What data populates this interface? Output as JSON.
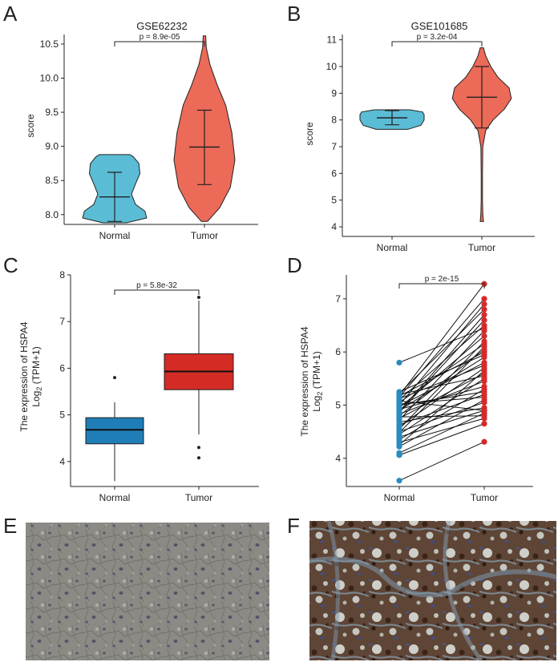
{
  "colors": {
    "normal_violin": "#5bbcd6",
    "tumor_violin": "#ec6a58",
    "normal_box": "#1f7eb8",
    "tumor_box": "#d42b24",
    "normal_point": "#2a8bbf",
    "tumor_point": "#d62a2a",
    "ihc_normal_bg": "#8b8a84",
    "ihc_tumor_bg": "#6a5040"
  },
  "panels": {
    "A": {
      "letter": "A"
    },
    "B": {
      "letter": "B"
    },
    "C": {
      "letter": "C"
    },
    "D": {
      "letter": "D"
    },
    "E": {
      "letter": "E"
    },
    "F": {
      "letter": "F"
    }
  },
  "chart_data": [
    {
      "id": "A",
      "type": "violin",
      "title": "GSE62232",
      "ylabel": "score",
      "categories": [
        "Normal",
        "Tumor"
      ],
      "ylim": [
        7.88,
        10.64
      ],
      "yticks": [
        "8.0",
        "8.5",
        "9.0",
        "9.5",
        "10.0",
        "10.5"
      ],
      "pvalue": "p = 8.9e-05",
      "groups": [
        {
          "name": "Normal",
          "min": 7.88,
          "max": 8.88,
          "mean": 8.26,
          "sd_low": 7.9,
          "sd_high": 8.62,
          "profile": [
            [
              7.88,
              0.35
            ],
            [
              7.95,
              0.95
            ],
            [
              8.05,
              0.9
            ],
            [
              8.15,
              0.62
            ],
            [
              8.3,
              0.5
            ],
            [
              8.45,
              0.62
            ],
            [
              8.6,
              0.75
            ],
            [
              8.75,
              0.72
            ],
            [
              8.85,
              0.55
            ],
            [
              8.88,
              0.45
            ]
          ]
        },
        {
          "name": "Tumor",
          "min": 7.9,
          "max": 10.62,
          "mean": 8.99,
          "sd_low": 8.44,
          "sd_high": 9.53,
          "profile": [
            [
              7.9,
              0.1
            ],
            [
              8.1,
              0.5
            ],
            [
              8.4,
              0.85
            ],
            [
              8.8,
              1.0
            ],
            [
              9.2,
              0.9
            ],
            [
              9.6,
              0.7
            ],
            [
              9.9,
              0.42
            ],
            [
              10.2,
              0.18
            ],
            [
              10.45,
              0.06
            ],
            [
              10.62,
              0.04
            ]
          ]
        }
      ]
    },
    {
      "id": "B",
      "type": "violin",
      "title": "GSE101685",
      "ylabel": "score",
      "categories": [
        "Normal",
        "Tumor"
      ],
      "ylim": [
        4.2,
        10.8
      ],
      "yticks": [
        "4",
        "5",
        "6",
        "7",
        "8",
        "9",
        "10",
        "11"
      ],
      "pvalue": "p = 3.2e-04",
      "groups": [
        {
          "name": "Normal",
          "min": 7.65,
          "max": 8.38,
          "mean": 8.08,
          "sd_low": 7.82,
          "sd_high": 8.35,
          "profile": [
            [
              7.65,
              0.5
            ],
            [
              7.8,
              0.9
            ],
            [
              8.0,
              1.0
            ],
            [
              8.2,
              1.0
            ],
            [
              8.3,
              0.95
            ],
            [
              8.38,
              0.55
            ]
          ]
        },
        {
          "name": "Tumor",
          "min": 4.2,
          "max": 10.7,
          "mean": 8.85,
          "sd_low": 7.7,
          "sd_high": 10.0,
          "profile": [
            [
              4.2,
              0.05
            ],
            [
              4.5,
              0.03
            ],
            [
              5.0,
              0.02
            ],
            [
              6.0,
              0.02
            ],
            [
              7.0,
              0.03
            ],
            [
              7.6,
              0.12
            ],
            [
              8.0,
              0.35
            ],
            [
              8.4,
              0.7
            ],
            [
              8.8,
              0.92
            ],
            [
              9.2,
              0.85
            ],
            [
              9.6,
              0.5
            ],
            [
              10.0,
              0.28
            ],
            [
              10.4,
              0.12
            ],
            [
              10.7,
              0.05
            ]
          ]
        }
      ]
    },
    {
      "id": "C",
      "type": "box",
      "ylabel_line1": "The expression of HSPA4",
      "ylabel_line2_main": "Log",
      "ylabel_line2_sub": "2",
      "ylabel_line2_rest": " (TPM+1)",
      "categories": [
        "Normal",
        "Tumor"
      ],
      "ylim": [
        3.5,
        8
      ],
      "yticks": [
        "4",
        "5",
        "6",
        "7",
        "8"
      ],
      "pvalue": "p = 5.8e-32",
      "groups": [
        {
          "name": "Normal",
          "lower_whisker": 3.58,
          "q1": 4.38,
          "median": 4.68,
          "q3": 4.94,
          "upper_whisker": 5.27,
          "outliers": [
            5.8
          ]
        },
        {
          "name": "Tumor",
          "lower_whisker": 4.58,
          "q1": 5.54,
          "median": 5.93,
          "q3": 6.31,
          "upper_whisker": 7.45,
          "outliers": [
            7.52,
            4.3,
            4.08
          ]
        }
      ]
    },
    {
      "id": "D",
      "type": "paired",
      "ylabel_line1": "The expression of HSPA4",
      "ylabel_line2_main": "Log",
      "ylabel_line2_sub": "2",
      "ylabel_line2_rest": " (TPM+1)",
      "categories": [
        "Normal",
        "Tumor"
      ],
      "ylim": [
        3.5,
        7.4
      ],
      "yticks": [
        "4",
        "5",
        "6",
        "7"
      ],
      "pvalue": "p = 2e-15",
      "pairs": [
        [
          3.58,
          4.31
        ],
        [
          4.1,
          4.85
        ],
        [
          4.06,
          4.65
        ],
        [
          4.22,
          5.1
        ],
        [
          4.3,
          4.75
        ],
        [
          4.35,
          5.3
        ],
        [
          4.4,
          4.9
        ],
        [
          4.45,
          5.5
        ],
        [
          4.5,
          5.05
        ],
        [
          4.55,
          6.2
        ],
        [
          4.6,
          5.7
        ],
        [
          4.63,
          5.2
        ],
        [
          4.68,
          4.95
        ],
        [
          4.72,
          6.4
        ],
        [
          4.75,
          5.6
        ],
        [
          4.78,
          4.8
        ],
        [
          4.8,
          6.05
        ],
        [
          4.83,
          5.45
        ],
        [
          4.86,
          6.6
        ],
        [
          4.9,
          5.9
        ],
        [
          4.92,
          5.35
        ],
        [
          4.95,
          6.3
        ],
        [
          4.98,
          5.8
        ],
        [
          5.0,
          6.9
        ],
        [
          5.02,
          5.15
        ],
        [
          5.05,
          6.15
        ],
        [
          5.08,
          4.9
        ],
        [
          5.1,
          6.5
        ],
        [
          5.12,
          5.75
        ],
        [
          5.15,
          7.0
        ],
        [
          5.17,
          6.0
        ],
        [
          5.2,
          5.55
        ],
        [
          5.22,
          6.8
        ],
        [
          5.25,
          5.95
        ],
        [
          5.18,
          7.28
        ],
        [
          5.8,
          6.45
        ],
        [
          4.25,
          5.65
        ],
        [
          4.48,
          6.1
        ],
        [
          5.0,
          5.25
        ],
        [
          4.88,
          6.7
        ]
      ]
    }
  ]
}
